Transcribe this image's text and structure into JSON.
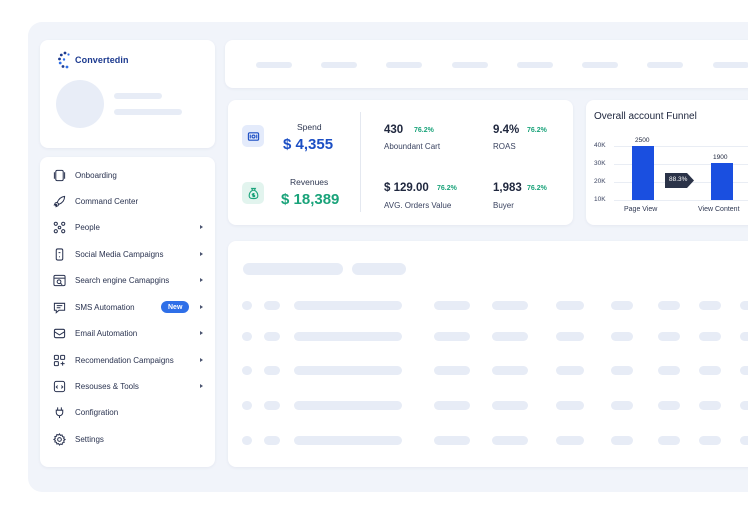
{
  "brand": {
    "name": "Convertedin"
  },
  "sidebar": {
    "items": [
      {
        "label": "Onboarding",
        "icon": "onboarding-icon",
        "has_arrow": false
      },
      {
        "label": "Command Center",
        "icon": "rocket-icon",
        "has_arrow": false
      },
      {
        "label": "People",
        "icon": "people-icon",
        "has_arrow": true
      },
      {
        "label": "Social Media Campaigns",
        "icon": "phone-icon",
        "has_arrow": true
      },
      {
        "label": "Search engine Camapgins",
        "icon": "search-browser-icon",
        "has_arrow": true
      },
      {
        "label": "SMS Automation",
        "icon": "sms-icon",
        "has_arrow": true,
        "badge": "New"
      },
      {
        "label": "Email Automation",
        "icon": "email-icon",
        "has_arrow": true
      },
      {
        "label": "Recomendation Campaigns",
        "icon": "grid-plus-icon",
        "has_arrow": true
      },
      {
        "label": "Resouses & Tools",
        "icon": "tools-icon",
        "has_arrow": true
      },
      {
        "label": "Configration",
        "icon": "plug-icon",
        "has_arrow": false
      },
      {
        "label": "Settings",
        "icon": "gear-icon",
        "has_arrow": false
      }
    ]
  },
  "metrics": {
    "spend": {
      "label": "Spend",
      "value": "$ 4,355"
    },
    "revenues": {
      "label": "Revenues",
      "value": "$ 18,389"
    },
    "stats": [
      {
        "value": "430",
        "pct": "76.2%",
        "label": "Aboundant Cart"
      },
      {
        "value": "9.4%",
        "pct": "76.2%",
        "label": "ROAS"
      },
      {
        "value": "$ 129.00",
        "pct": "76.2%",
        "label": "AVG. Orders Value"
      },
      {
        "value": "1,983",
        "pct": "76.2%",
        "label": "Buyer"
      }
    ]
  },
  "colors": {
    "accent_blue": "#1a4fe0",
    "revenue_green": "#1aa37a",
    "spend_blue": "#1c4fc4",
    "badge": "#2f6fe8"
  },
  "chart_data": {
    "type": "bar",
    "title": "Overall account Funnel",
    "categories": [
      "Page View",
      "View Content"
    ],
    "values": [
      2500,
      1900
    ],
    "data_labels": [
      "2500",
      "1900"
    ],
    "y_ticks": [
      "40K",
      "30K",
      "20K",
      "10K"
    ],
    "conversion_label": "88.3%"
  }
}
